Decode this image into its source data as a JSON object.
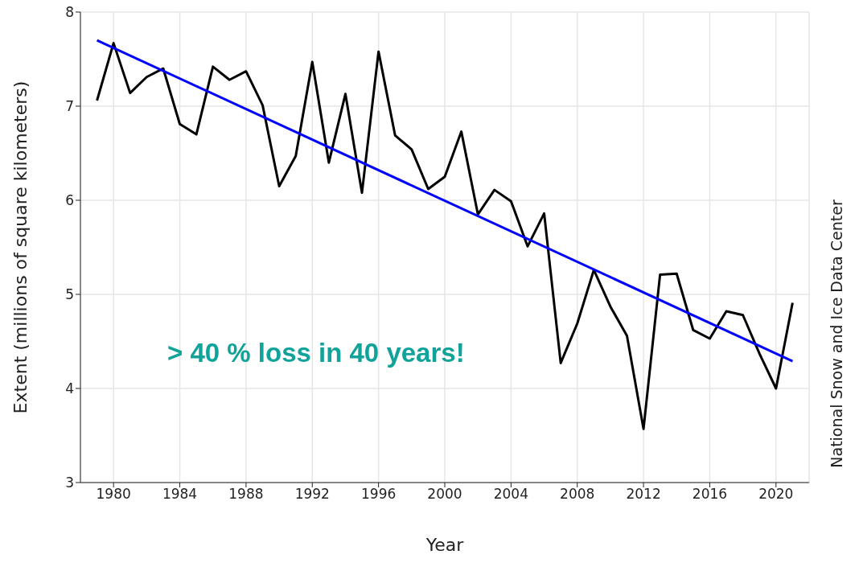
{
  "chart_data": {
    "type": "line",
    "xlabel": "Year",
    "ylabel": "Extent (millions of square kilometers)",
    "x": [
      1979,
      1980,
      1981,
      1982,
      1983,
      1984,
      1985,
      1986,
      1987,
      1988,
      1989,
      1990,
      1991,
      1992,
      1993,
      1994,
      1995,
      1996,
      1997,
      1998,
      1999,
      2000,
      2001,
      2002,
      2003,
      2004,
      2005,
      2006,
      2007,
      2008,
      2009,
      2010,
      2011,
      2012,
      2013,
      2014,
      2015,
      2016,
      2017,
      2018,
      2019,
      2020,
      2021
    ],
    "series": [
      {
        "color": "#000000",
        "values": [
          7.06,
          7.67,
          7.14,
          7.31,
          7.4,
          6.81,
          6.7,
          7.42,
          7.28,
          7.37,
          7.01,
          6.15,
          6.47,
          7.47,
          6.4,
          7.13,
          6.08,
          7.58,
          6.69,
          6.54,
          6.12,
          6.25,
          6.73,
          5.85,
          6.11,
          5.99,
          5.51,
          5.86,
          4.27,
          4.69,
          5.26,
          4.87,
          4.56,
          3.57,
          5.21,
          5.22,
          4.62,
          4.53,
          4.82,
          4.78,
          4.37,
          4.0,
          4.91
        ]
      },
      {
        "type": "line",
        "color": "#0000ff",
        "x": [
          1979,
          2021
        ],
        "values": [
          7.7,
          4.29
        ]
      }
    ],
    "xlim": [
      1978,
      2022
    ],
    "xticks": [
      1980,
      1984,
      1988,
      1992,
      1996,
      2000,
      2004,
      2008,
      2012,
      2016,
      2020
    ],
    "ylim": [
      3,
      8
    ],
    "yticks": [
      3,
      4,
      5,
      6,
      7,
      8
    ],
    "grid": true,
    "marker": "none",
    "annotations": [
      "> 40 % loss in 40 years!",
      "National Snow and Ice Data Center"
    ]
  }
}
